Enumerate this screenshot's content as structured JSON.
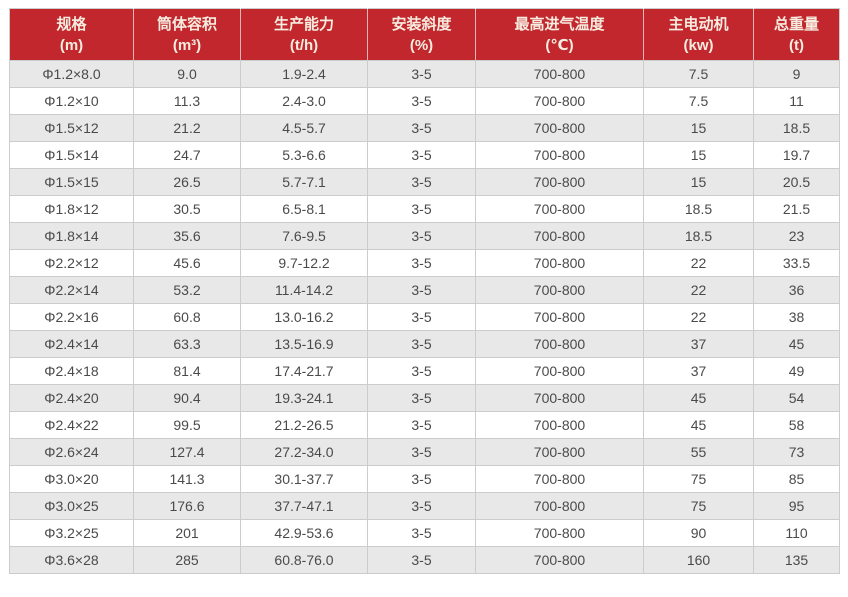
{
  "chart_data": {
    "type": "table",
    "title": "",
    "columns": [
      {
        "label": "规格",
        "unit": "(m)"
      },
      {
        "label": "筒体容积",
        "unit": "(m³)"
      },
      {
        "label": "生产能力",
        "unit": "(t/h)"
      },
      {
        "label": "安装斜度",
        "unit": "(%)"
      },
      {
        "label": "最高进气温度",
        "unit": "(℃)"
      },
      {
        "label": "主电动机",
        "unit": "(kw)"
      },
      {
        "label": "总重量",
        "unit": "(t)"
      }
    ],
    "rows": [
      [
        "Φ1.2×8.0",
        "9.0",
        "1.9-2.4",
        "3-5",
        "700-800",
        "7.5",
        "9"
      ],
      [
        "Φ1.2×10",
        "11.3",
        "2.4-3.0",
        "3-5",
        "700-800",
        "7.5",
        "11"
      ],
      [
        "Φ1.5×12",
        "21.2",
        "4.5-5.7",
        "3-5",
        "700-800",
        "15",
        "18.5"
      ],
      [
        "Φ1.5×14",
        "24.7",
        "5.3-6.6",
        "3-5",
        "700-800",
        "15",
        "19.7"
      ],
      [
        "Φ1.5×15",
        "26.5",
        "5.7-7.1",
        "3-5",
        "700-800",
        "15",
        "20.5"
      ],
      [
        "Φ1.8×12",
        "30.5",
        "6.5-8.1",
        "3-5",
        "700-800",
        "18.5",
        "21.5"
      ],
      [
        "Φ1.8×14",
        "35.6",
        "7.6-9.5",
        "3-5",
        "700-800",
        "18.5",
        "23"
      ],
      [
        "Φ2.2×12",
        "45.6",
        "9.7-12.2",
        "3-5",
        "700-800",
        "22",
        "33.5"
      ],
      [
        "Φ2.2×14",
        "53.2",
        "11.4-14.2",
        "3-5",
        "700-800",
        "22",
        "36"
      ],
      [
        "Φ2.2×16",
        "60.8",
        "13.0-16.2",
        "3-5",
        "700-800",
        "22",
        "38"
      ],
      [
        "Φ2.4×14",
        "63.3",
        "13.5-16.9",
        "3-5",
        "700-800",
        "37",
        "45"
      ],
      [
        "Φ2.4×18",
        "81.4",
        "17.4-21.7",
        "3-5",
        "700-800",
        "37",
        "49"
      ],
      [
        "Φ2.4×20",
        "90.4",
        "19.3-24.1",
        "3-5",
        "700-800",
        "45",
        "54"
      ],
      [
        "Φ2.4×22",
        "99.5",
        "21.2-26.5",
        "3-5",
        "700-800",
        "45",
        "58"
      ],
      [
        "Φ2.6×24",
        "127.4",
        "27.2-34.0",
        "3-5",
        "700-800",
        "55",
        "73"
      ],
      [
        "Φ3.0×20",
        "141.3",
        "30.1-37.7",
        "3-5",
        "700-800",
        "75",
        "85"
      ],
      [
        "Φ3.0×25",
        "176.6",
        "37.7-47.1",
        "3-5",
        "700-800",
        "75",
        "95"
      ],
      [
        "Φ3.2×25",
        "201",
        "42.9-53.6",
        "3-5",
        "700-800",
        "90",
        "110"
      ],
      [
        "Φ3.6×28",
        "285",
        "60.8-76.0",
        "3-5",
        "700-800",
        "160",
        "135"
      ]
    ],
    "layout": {
      "grid": true,
      "striped_rows": true,
      "header_rows": 1
    }
  },
  "colors": {
    "header_bg": "#c2272d",
    "header_text": "#f6ece0",
    "row_stripe": "#e8e8e8",
    "row_white": "#ffffff",
    "cell_text": "#4a4a4a",
    "border": "#cccccc"
  }
}
